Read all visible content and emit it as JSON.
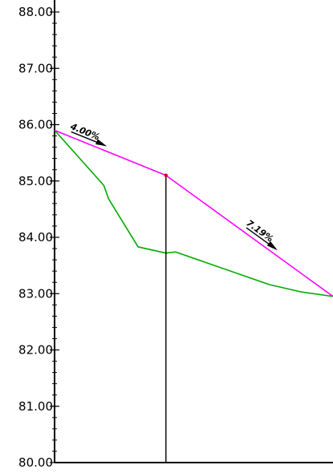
{
  "chart_data": {
    "type": "line",
    "title": "",
    "xlabel": "",
    "ylabel": "",
    "ylim": [
      80,
      88
    ],
    "y_ticks": [
      "80.00",
      "81.00",
      "82.00",
      "83.00",
      "84.00",
      "85.00",
      "86.00",
      "87.00",
      "88.00"
    ],
    "grid": false,
    "series": [
      {
        "role": "existing-ground",
        "color": "#00aa00",
        "x": [
          0,
          62,
          68,
          105,
          140,
          152,
          270,
          310,
          350
        ],
        "y": [
          85.9,
          84.92,
          84.68,
          83.83,
          83.72,
          83.74,
          83.16,
          83.03,
          82.95
        ]
      },
      {
        "role": "proposed-grade",
        "color": "#ff00ff",
        "x": [
          0,
          140,
          350
        ],
        "y": [
          85.9,
          85.1,
          82.95
        ]
      }
    ],
    "vertical_marker": {
      "x": 140,
      "y_top": 85.1,
      "color": "#000000",
      "point_color": "#cc0000"
    },
    "grade_labels": [
      {
        "text": "4.00%",
        "segment": 0
      },
      {
        "text": "7.19%",
        "segment": 1
      }
    ]
  }
}
